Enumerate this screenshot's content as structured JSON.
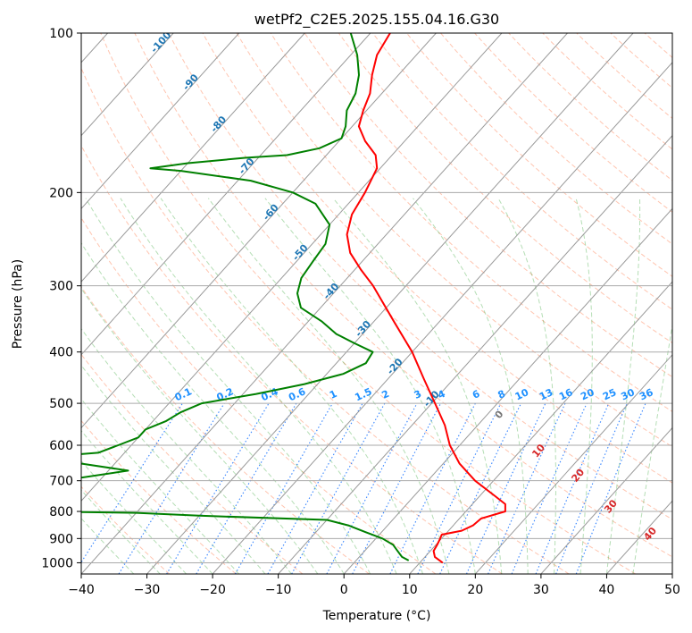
{
  "chart_data": {
    "type": "line",
    "title": "wetPf2_C2E5.2025.155.04.16.G30",
    "xlabel": "Temperature (°C)",
    "ylabel": "Pressure (hPa)",
    "xlim": [
      -40,
      50
    ],
    "ylim": [
      1050,
      100
    ],
    "y_scale": "log",
    "x_ticks": [
      "−40",
      "−30",
      "−20",
      "−10",
      "0",
      "10",
      "20",
      "30",
      "40",
      "50"
    ],
    "y_ticks": [
      "100",
      "200",
      "300",
      "400",
      "500",
      "600",
      "700",
      "800",
      "900",
      "1000"
    ],
    "grid": true,
    "skewed_isotherm_labels": [
      "-100",
      "-90",
      "-80",
      "-70",
      "-60",
      "-50",
      "-40",
      "-30",
      "-20",
      "-10"
    ],
    "mixing_ratio_labels": [
      "0.1",
      "0.2",
      "0.4",
      "0.6",
      "1",
      "1.5",
      "2",
      "3",
      "4",
      "6",
      "8",
      "10",
      "13",
      "16",
      "20",
      "25",
      "30",
      "36"
    ],
    "moist_adiabat_labels": [
      "0",
      "10",
      "20",
      "30",
      "40"
    ],
    "series": [
      {
        "kind": "temperature",
        "color": "#ff0000",
        "points": [
          [
            1000,
            13.5
          ],
          [
            975,
            11.5
          ],
          [
            950,
            10.5
          ],
          [
            925,
            10.2
          ],
          [
            900,
            9.8
          ],
          [
            885,
            9.5
          ],
          [
            870,
            12.0
          ],
          [
            850,
            13.0
          ],
          [
            825,
            13.3
          ],
          [
            800,
            16.0
          ],
          [
            775,
            15.0
          ],
          [
            750,
            12.5
          ],
          [
            700,
            7.2
          ],
          [
            650,
            2.5
          ],
          [
            600,
            -1.5
          ],
          [
            550,
            -5.0
          ],
          [
            500,
            -9.5
          ],
          [
            450,
            -14.5
          ],
          [
            400,
            -20.0
          ],
          [
            350,
            -27.0
          ],
          [
            300,
            -35.0
          ],
          [
            280,
            -39.0
          ],
          [
            260,
            -43.0
          ],
          [
            240,
            -46.0
          ],
          [
            220,
            -48.0
          ],
          [
            200,
            -49.0
          ],
          [
            180,
            -50.5
          ],
          [
            170,
            -52.5
          ],
          [
            160,
            -56.0
          ],
          [
            150,
            -59.0
          ],
          [
            140,
            -60.5
          ],
          [
            130,
            -61.8
          ],
          [
            120,
            -64.0
          ],
          [
            110,
            -66.0
          ],
          [
            100,
            -67.0
          ]
        ]
      },
      {
        "kind": "dewpoint",
        "color": "#008000",
        "points": [
          [
            990,
            8.0
          ],
          [
            975,
            6.5
          ],
          [
            950,
            5.0
          ],
          [
            925,
            3.5
          ],
          [
            900,
            1.0
          ],
          [
            875,
            -2.5
          ],
          [
            850,
            -6.0
          ],
          [
            830,
            -10.0
          ],
          [
            815,
            -30.0
          ],
          [
            805,
            -40.0
          ],
          [
            800,
            -55.0
          ],
          [
            790,
            -65.0
          ],
          [
            780,
            -72.0
          ],
          [
            770,
            -82.0
          ],
          [
            750,
            -78.0
          ],
          [
            730,
            -70.0
          ],
          [
            710,
            -61.0
          ],
          [
            690,
            -53.0
          ],
          [
            670,
            -47.0
          ],
          [
            650,
            -55.0
          ],
          [
            640,
            -60.0
          ],
          [
            630,
            -61.0
          ],
          [
            620,
            -54.0
          ],
          [
            600,
            -52.0
          ],
          [
            580,
            -50.0
          ],
          [
            560,
            -50.0
          ],
          [
            540,
            -48.0
          ],
          [
            520,
            -47.0
          ],
          [
            500,
            -45.0
          ],
          [
            480,
            -38.0
          ],
          [
            460,
            -32.0
          ],
          [
            440,
            -27.5
          ],
          [
            420,
            -25.5
          ],
          [
            400,
            -26.0
          ],
          [
            385,
            -30.0
          ],
          [
            370,
            -34.0
          ],
          [
            350,
            -38.0
          ],
          [
            330,
            -43.0
          ],
          [
            310,
            -45.5
          ],
          [
            290,
            -47.0
          ],
          [
            270,
            -47.5
          ],
          [
            250,
            -48.0
          ],
          [
            230,
            -50.0
          ],
          [
            210,
            -55.0
          ],
          [
            200,
            -60.0
          ],
          [
            190,
            -68.0
          ],
          [
            182,
            -80.0
          ],
          [
            180,
            -85.0
          ],
          [
            176,
            -80.0
          ],
          [
            172,
            -72.0
          ],
          [
            170,
            -66.0
          ],
          [
            165,
            -62.0
          ],
          [
            158,
            -60.0
          ],
          [
            150,
            -61.0
          ],
          [
            140,
            -63.0
          ],
          [
            130,
            -64.0
          ],
          [
            120,
            -66.0
          ],
          [
            110,
            -69.0
          ],
          [
            100,
            -73.0
          ]
        ]
      }
    ]
  }
}
